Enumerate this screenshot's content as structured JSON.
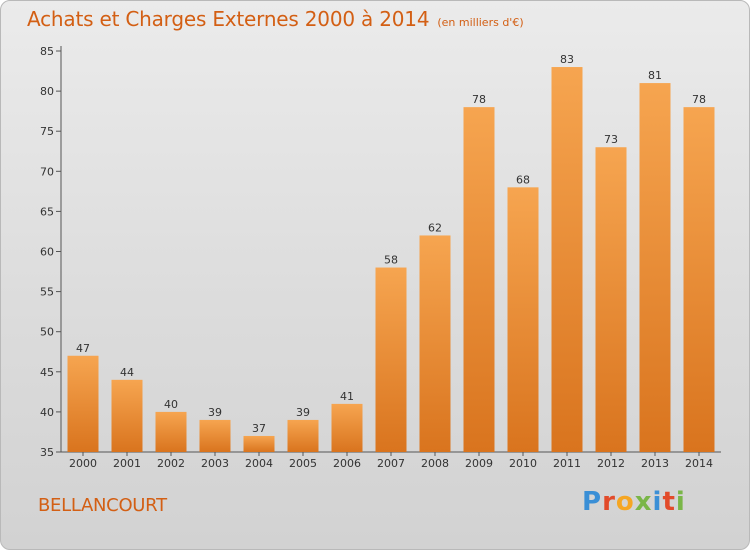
{
  "header": {
    "title": "Achats et Charges Externes 2000 à 2014",
    "subtitle": "(en milliers d'€)"
  },
  "footer": {
    "commune": "BELLANCOURT",
    "logo": "Proxiti"
  },
  "colors": {
    "accent": "#d35f14",
    "bar_top": "#f6a550",
    "bar_bottom": "#d9741e",
    "logo_letters": [
      "#3a8fd6",
      "#e24b2a",
      "#f5a623",
      "#7ab648",
      "#3a8fd6",
      "#e24b2a",
      "#7ab648"
    ]
  },
  "chart_data": {
    "type": "bar",
    "title": "Achats et Charges Externes 2000 à 2014",
    "subtitle": "(en milliers d'€)",
    "categories": [
      "2000",
      "2001",
      "2002",
      "2003",
      "2004",
      "2005",
      "2006",
      "2007",
      "2008",
      "2009",
      "2010",
      "2011",
      "2012",
      "2013",
      "2014"
    ],
    "values": [
      47,
      44,
      40,
      39,
      37,
      39,
      41,
      58,
      62,
      78,
      68,
      83,
      73,
      81,
      78
    ],
    "ylim": [
      35,
      85
    ],
    "yticks": [
      35,
      40,
      45,
      50,
      55,
      60,
      65,
      70,
      75,
      80,
      85
    ],
    "grid": false,
    "data_labels": true
  }
}
